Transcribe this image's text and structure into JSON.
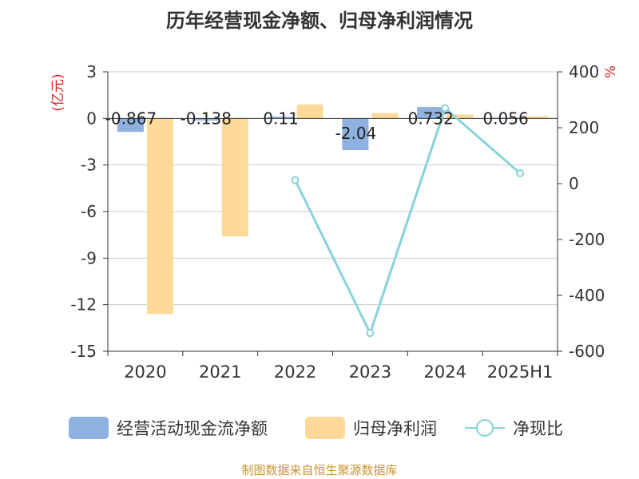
{
  "title": "历年经营现金净额、归母净利润情况",
  "source": "制图数据来自恒生聚源数据库",
  "colors": {
    "cash": "#8fb1df",
    "profit": "#ffd998",
    "ratio": "#88d3d8",
    "axis_unit": "#e02020"
  },
  "chart_data": {
    "type": "bar",
    "categories": [
      "2020",
      "2021",
      "2022",
      "2023",
      "2024",
      "2025H1"
    ],
    "left_axis": {
      "unit": "(亿元)",
      "ylim": [
        -15,
        3
      ],
      "ticks": [
        3,
        0,
        -3,
        -6,
        -9,
        -12,
        -15
      ]
    },
    "right_axis": {
      "unit": "%",
      "ylim": [
        -600,
        400
      ],
      "ticks": [
        400,
        200,
        0,
        -200,
        -400,
        -600
      ]
    },
    "series": [
      {
        "name": "经营活动现金流净额",
        "type": "bar",
        "axis": "left",
        "values": [
          -0.867,
          -0.138,
          0.11,
          -2.04,
          0.732,
          0.056
        ],
        "labels": [
          "-0.867",
          "-0.138",
          "0.11",
          "-2.04",
          "0.732",
          "0.056"
        ]
      },
      {
        "name": "归母净利润",
        "type": "bar",
        "axis": "left",
        "values": [
          -12.6,
          -7.6,
          0.9,
          0.35,
          0.25,
          0.15
        ]
      },
      {
        "name": "净现比",
        "type": "line",
        "axis": "right",
        "values": [
          null,
          null,
          12,
          -535,
          270,
          37
        ]
      }
    ],
    "grid": true,
    "legend_position": "bottom"
  }
}
